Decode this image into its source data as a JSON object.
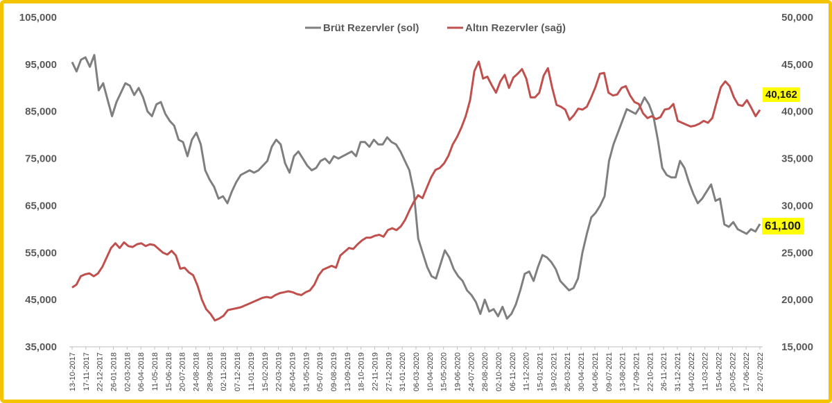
{
  "chart_data": {
    "type": "line",
    "title": "",
    "xlabel": "",
    "ylabel_left": "",
    "ylabel_right": "",
    "y_left": {
      "ylim": [
        35000,
        105000
      ],
      "ticks": [
        "35,000",
        "45,000",
        "55,000",
        "65,000",
        "75,000",
        "85,000",
        "95,000",
        "105,000"
      ]
    },
    "y_right": {
      "ylim": [
        15000,
        50000
      ],
      "ticks": [
        "15,000",
        "20,000",
        "25,000",
        "30,000",
        "35,000",
        "40,000",
        "45,000",
        "50,000"
      ]
    },
    "grid": false,
    "legend": {
      "position": "top-center"
    },
    "x_ticks": [
      "13-10-2017",
      "17-11-2017",
      "22-12-2017",
      "26-01-2018",
      "02-03-2018",
      "06-04-2018",
      "11-05-2018",
      "15-06-2018",
      "20-07-2018",
      "24-08-2018",
      "28-09-2018",
      "02-11-2018",
      "07-12-2018",
      "11-01-2019",
      "15-02-2019",
      "22-03-2019",
      "26-04-2019",
      "31-05-2019",
      "05-07-2019",
      "09-08-2019",
      "13-09-2019",
      "18-10-2019",
      "22-11-2019",
      "27-12-2019",
      "31-01-2020",
      "06-03-2020",
      "10-04-2020",
      "15-05-2020",
      "19-06-2020",
      "24-07-2020",
      "28-08-2020",
      "02-10-2020",
      "06-11-2020",
      "11-12-2020",
      "15-01-2021",
      "19-02-2021",
      "26-03-2021",
      "30-04-2021",
      "04-06-2021",
      "09-07-2021",
      "13-08-2021",
      "17-09-2021",
      "22-10-2021",
      "26-11-2021",
      "31-12-2021",
      "04-02-2022",
      "11-03-2022",
      "15-04-2022",
      "20-05-2022",
      "17-06-2022",
      "22-07-2022"
    ],
    "series": [
      {
        "name": "Brüt Rezervler (sol)",
        "axis": "left",
        "color": "#7f7f7f",
        "values": [
          95500,
          93500,
          96000,
          96500,
          94500,
          97000,
          89500,
          91000,
          87500,
          84000,
          87000,
          89000,
          91000,
          90500,
          88500,
          90000,
          88000,
          85000,
          84000,
          86500,
          87000,
          84500,
          83000,
          82000,
          79000,
          78500,
          75500,
          79000,
          80500,
          78000,
          72500,
          70500,
          69000,
          66500,
          67000,
          65500,
          68000,
          70000,
          71500,
          72000,
          72500,
          72000,
          72500,
          73500,
          74500,
          77500,
          79000,
          78000,
          74000,
          72000,
          75500,
          76500,
          75000,
          73500,
          72500,
          73000,
          74500,
          75000,
          74000,
          75500,
          75000,
          75500,
          76000,
          76500,
          75500,
          78500,
          78500,
          77500,
          79000,
          78000,
          78000,
          79500,
          78500,
          78000,
          76500,
          74500,
          72500,
          68000,
          58000,
          55000,
          52000,
          50000,
          49500,
          52500,
          55500,
          54000,
          51500,
          50000,
          49000,
          47000,
          46000,
          44500,
          42000,
          45000,
          42500,
          43000,
          41500,
          43500,
          41000,
          42000,
          44000,
          47000,
          50500,
          51000,
          49000,
          52000,
          54500,
          54000,
          53000,
          51500,
          49000,
          48000,
          47000,
          47500,
          49500,
          55000,
          59000,
          62500,
          63500,
          65000,
          67000,
          74500,
          78000,
          80500,
          83000,
          85500,
          85000,
          84500,
          86000,
          88000,
          86500,
          84000,
          79000,
          73000,
          71500,
          71000,
          71000,
          74500,
          73000,
          70000,
          67500,
          65500,
          66500,
          68000,
          69500,
          66000,
          66500,
          61000,
          60500,
          61500,
          60000,
          59500,
          59000,
          60000,
          59500,
          61100
        ]
      },
      {
        "name": "Altın Rezervler (sağ)",
        "axis": "right",
        "color": "#c0504d",
        "values": [
          21300,
          21600,
          22500,
          22700,
          22800,
          22500,
          22800,
          23500,
          24500,
          25500,
          26000,
          25500,
          26100,
          25700,
          25600,
          25900,
          26000,
          25700,
          25900,
          25800,
          25400,
          25000,
          24800,
          25200,
          24700,
          23300,
          23400,
          22900,
          22600,
          21500,
          20000,
          19000,
          18500,
          17800,
          18000,
          18300,
          18900,
          19000,
          19100,
          19200,
          19400,
          19600,
          19800,
          20000,
          20200,
          20300,
          20200,
          20500,
          20700,
          20800,
          20900,
          20800,
          20600,
          20500,
          20800,
          21000,
          21600,
          22600,
          23200,
          23400,
          23600,
          23400,
          24700,
          25100,
          25500,
          25400,
          25900,
          26300,
          26600,
          26600,
          26800,
          26900,
          26700,
          27400,
          27600,
          27400,
          27800,
          28500,
          29500,
          30400,
          31100,
          30800,
          31900,
          33000,
          33800,
          34000,
          34500,
          35300,
          36500,
          37300,
          38300,
          39500,
          41200,
          44300,
          45300,
          43500,
          43700,
          42800,
          42000,
          43200,
          43900,
          42500,
          43600,
          44000,
          44500,
          43500,
          41500,
          41500,
          42000,
          43800,
          44600,
          42500,
          40700,
          40500,
          40200,
          39100,
          39600,
          40300,
          40200,
          40500,
          41500,
          42600,
          44000,
          44100,
          42000,
          41700,
          41800,
          42500,
          42700,
          41700,
          41000,
          40800,
          39800,
          39300,
          39500,
          39200,
          39400,
          40200,
          40300,
          40800,
          39000,
          38800,
          38600,
          38400,
          38500,
          38700,
          39000,
          38800,
          39300,
          41000,
          42600,
          43200,
          42700,
          41500,
          40700,
          40600,
          41200,
          40400,
          39500,
          40162
        ]
      }
    ],
    "callouts": {
      "right_last": "40,162",
      "left_last": "61,100"
    }
  }
}
